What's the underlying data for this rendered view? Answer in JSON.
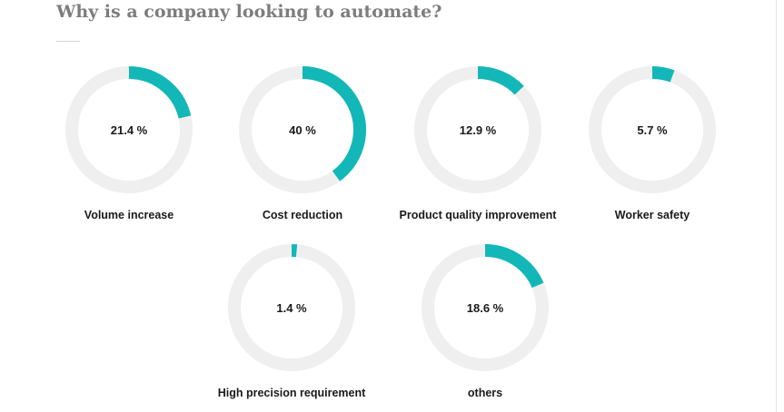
{
  "chart_data": {
    "type": "pie",
    "title": "Why is a company looking to automate?",
    "unit_suffix": " %",
    "colors": {
      "fill": "#13b7b7",
      "track": "#efefef"
    },
    "slices": [
      {
        "label": "Volume increase",
        "value": 21.4
      },
      {
        "label": "Cost reduction",
        "value": 40
      },
      {
        "label": "Product quality improvement",
        "value": 12.9
      },
      {
        "label": "Worker safety",
        "value": 5.7
      },
      {
        "label": "High precision requirement",
        "value": 1.4
      },
      {
        "label": "others",
        "value": 18.6
      }
    ]
  }
}
